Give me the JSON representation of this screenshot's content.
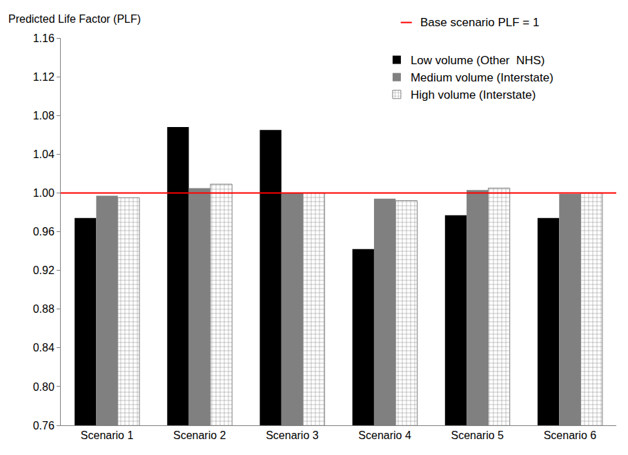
{
  "chart_data": {
    "type": "bar",
    "y_label": "Predicted Life Factor (PLF)",
    "categories": [
      "Scenario 1",
      "Scenario 2",
      "Scenario 3",
      "Scenario 4",
      "Scenario 5",
      "Scenario 6"
    ],
    "series": [
      {
        "name": "Low volume (Other  NHS)",
        "color": "#000000",
        "values": [
          0.974,
          1.068,
          1.065,
          0.942,
          0.977,
          0.974
        ]
      },
      {
        "name": "Medium volume (Interstate)",
        "color": "#808080",
        "values": [
          0.997,
          1.005,
          1.0,
          0.994,
          1.003,
          0.999
        ]
      },
      {
        "name": "High volume (Interstate)",
        "color": "#ffffff",
        "marker": "brick",
        "values": [
          0.995,
          1.009,
          1.0,
          0.992,
          1.005,
          1.0
        ]
      }
    ],
    "annotations": [
      {
        "text": "Base scenario PLF = 1",
        "y": 1,
        "color": "#ff0000"
      }
    ],
    "ylim": [
      0.76,
      1.16
    ],
    "yticks": [
      {
        "value": 0.76,
        "label": "0.76"
      },
      {
        "value": 0.8,
        "label": "0.80"
      },
      {
        "value": 0.84,
        "label": "0.84"
      },
      {
        "value": 0.88,
        "label": "0.88"
      },
      {
        "value": 0.92,
        "label": "0.92"
      },
      {
        "value": 0.96,
        "label": "0.96"
      },
      {
        "value": 1,
        "label": "1.00"
      },
      {
        "value": 1.04,
        "label": "1.04"
      },
      {
        "value": 1.08,
        "label": "1.08"
      },
      {
        "value": 1.12,
        "label": "1.12"
      },
      {
        "value": 1.16,
        "label": "1.16"
      }
    ],
    "grid": false,
    "legend": "top-right"
  }
}
